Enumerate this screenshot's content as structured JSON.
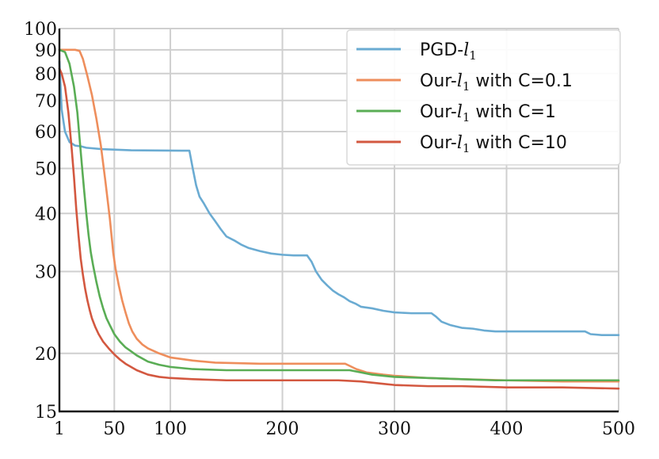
{
  "chart_data": {
    "type": "line",
    "title": "",
    "xlabel": "",
    "ylabel": "",
    "x_scale": "linear",
    "y_scale": "log",
    "xlim": [
      1,
      500
    ],
    "ylim": [
      15,
      100
    ],
    "grid": true,
    "legend_position": "top-right",
    "xticks": [
      1,
      50,
      100,
      200,
      300,
      400,
      500
    ],
    "xtick_labels": [
      "1",
      "50",
      "100",
      "200",
      "300",
      "400",
      "500"
    ],
    "yticks": [
      15,
      20,
      30,
      40,
      50,
      60,
      70,
      80,
      90,
      100
    ],
    "ytick_labels": [
      "15",
      "20",
      "30",
      "40",
      "50",
      "60",
      "70",
      "80",
      "90",
      "100"
    ],
    "series": [
      {
        "name": "PGD-l1",
        "name_prefix": "PGD-",
        "name_math": "l",
        "name_sub": "1",
        "name_suffix": "",
        "color": "#6aabd2",
        "points": [
          [
            1,
            85
          ],
          [
            3,
            67
          ],
          [
            6,
            60
          ],
          [
            10,
            57
          ],
          [
            15,
            56
          ],
          [
            20,
            55.8
          ],
          [
            25,
            55.4
          ],
          [
            40,
            55
          ],
          [
            65,
            54.7
          ],
          [
            110,
            54.6
          ],
          [
            117,
            54.6
          ],
          [
            120,
            50
          ],
          [
            123,
            46
          ],
          [
            126,
            43.5
          ],
          [
            130,
            42
          ],
          [
            135,
            40
          ],
          [
            140,
            38.5
          ],
          [
            145,
            37
          ],
          [
            150,
            35.7
          ],
          [
            157,
            35
          ],
          [
            163,
            34.3
          ],
          [
            170,
            33.7
          ],
          [
            180,
            33.2
          ],
          [
            190,
            32.8
          ],
          [
            200,
            32.6
          ],
          [
            210,
            32.5
          ],
          [
            222,
            32.5
          ],
          [
            226,
            31.5
          ],
          [
            230,
            30
          ],
          [
            235,
            28.8
          ],
          [
            240,
            28
          ],
          [
            245,
            27.3
          ],
          [
            250,
            26.8
          ],
          [
            255,
            26.4
          ],
          [
            260,
            25.9
          ],
          [
            265,
            25.6
          ],
          [
            270,
            25.2
          ],
          [
            280,
            25
          ],
          [
            290,
            24.7
          ],
          [
            300,
            24.5
          ],
          [
            315,
            24.4
          ],
          [
            333,
            24.4
          ],
          [
            337,
            24
          ],
          [
            342,
            23.4
          ],
          [
            350,
            23
          ],
          [
            360,
            22.7
          ],
          [
            370,
            22.6
          ],
          [
            380,
            22.4
          ],
          [
            390,
            22.3
          ],
          [
            400,
            22.3
          ],
          [
            420,
            22.3
          ],
          [
            445,
            22.3
          ],
          [
            470,
            22.3
          ],
          [
            475,
            22
          ],
          [
            485,
            21.9
          ],
          [
            500,
            21.9
          ]
        ]
      },
      {
        "name": "Our-l1 with C=0.1",
        "name_prefix": "Our-",
        "name_math": "l",
        "name_sub": "1",
        "name_suffix": " with C=0.1",
        "color": "#ee8e5c",
        "points": [
          [
            1,
            90
          ],
          [
            5,
            90
          ],
          [
            10,
            90
          ],
          [
            15,
            90
          ],
          [
            19,
            89.5
          ],
          [
            22,
            86
          ],
          [
            26,
            79
          ],
          [
            30,
            72
          ],
          [
            34,
            64
          ],
          [
            38,
            56
          ],
          [
            42,
            47
          ],
          [
            46,
            39
          ],
          [
            49,
            33
          ],
          [
            51,
            30.5
          ],
          [
            54,
            28
          ],
          [
            57,
            26
          ],
          [
            60,
            24.5
          ],
          [
            63,
            23.2
          ],
          [
            66,
            22.3
          ],
          [
            70,
            21.5
          ],
          [
            75,
            20.9
          ],
          [
            80,
            20.5
          ],
          [
            90,
            20
          ],
          [
            100,
            19.6
          ],
          [
            120,
            19.3
          ],
          [
            140,
            19.1
          ],
          [
            180,
            19
          ],
          [
            220,
            19
          ],
          [
            256,
            19
          ],
          [
            260,
            18.8
          ],
          [
            266,
            18.5
          ],
          [
            275,
            18.2
          ],
          [
            290,
            18
          ],
          [
            300,
            17.9
          ],
          [
            330,
            17.7
          ],
          [
            360,
            17.6
          ],
          [
            400,
            17.5
          ],
          [
            450,
            17.4
          ],
          [
            500,
            17.4
          ]
        ]
      },
      {
        "name": "Our-l1 with C=1",
        "name_prefix": "Our-",
        "name_math": "l",
        "name_sub": "1",
        "name_suffix": " with C=1",
        "color": "#5aad55",
        "points": [
          [
            1,
            90
          ],
          [
            6,
            89
          ],
          [
            10,
            84
          ],
          [
            14,
            75
          ],
          [
            17,
            66
          ],
          [
            19,
            58
          ],
          [
            21,
            51
          ],
          [
            23,
            45
          ],
          [
            25,
            40
          ],
          [
            27,
            36
          ],
          [
            29,
            33
          ],
          [
            31,
            31
          ],
          [
            34,
            28.5
          ],
          [
            37,
            26.5
          ],
          [
            40,
            25
          ],
          [
            43,
            23.8
          ],
          [
            46,
            23
          ],
          [
            50,
            22
          ],
          [
            55,
            21.2
          ],
          [
            60,
            20.6
          ],
          [
            65,
            20.2
          ],
          [
            70,
            19.8
          ],
          [
            80,
            19.2
          ],
          [
            90,
            18.9
          ],
          [
            100,
            18.7
          ],
          [
            120,
            18.5
          ],
          [
            150,
            18.4
          ],
          [
            200,
            18.4
          ],
          [
            260,
            18.4
          ],
          [
            270,
            18.2
          ],
          [
            280,
            18
          ],
          [
            300,
            17.8
          ],
          [
            330,
            17.7
          ],
          [
            360,
            17.6
          ],
          [
            390,
            17.5
          ],
          [
            430,
            17.5
          ],
          [
            470,
            17.5
          ],
          [
            500,
            17.5
          ]
        ]
      },
      {
        "name": "Our-l1 with C=10",
        "name_prefix": "Our-",
        "name_math": "l",
        "name_sub": "1",
        "name_suffix": " with C=10",
        "color": "#d35840",
        "points": [
          [
            1,
            82
          ],
          [
            3,
            80
          ],
          [
            6,
            75
          ],
          [
            9,
            66
          ],
          [
            12,
            55
          ],
          [
            14,
            48
          ],
          [
            16,
            41
          ],
          [
            18,
            36
          ],
          [
            20,
            32
          ],
          [
            22,
            29.5
          ],
          [
            24,
            27.5
          ],
          [
            26,
            26
          ],
          [
            28,
            24.8
          ],
          [
            30,
            23.8
          ],
          [
            33,
            22.8
          ],
          [
            36,
            22
          ],
          [
            40,
            21.2
          ],
          [
            45,
            20.5
          ],
          [
            50,
            19.9
          ],
          [
            55,
            19.4
          ],
          [
            60,
            19
          ],
          [
            70,
            18.4
          ],
          [
            80,
            18
          ],
          [
            90,
            17.8
          ],
          [
            100,
            17.7
          ],
          [
            120,
            17.6
          ],
          [
            150,
            17.5
          ],
          [
            200,
            17.5
          ],
          [
            250,
            17.5
          ],
          [
            270,
            17.4
          ],
          [
            290,
            17.2
          ],
          [
            300,
            17.1
          ],
          [
            330,
            17
          ],
          [
            360,
            17
          ],
          [
            400,
            16.9
          ],
          [
            450,
            16.9
          ],
          [
            500,
            16.8
          ]
        ]
      }
    ]
  }
}
